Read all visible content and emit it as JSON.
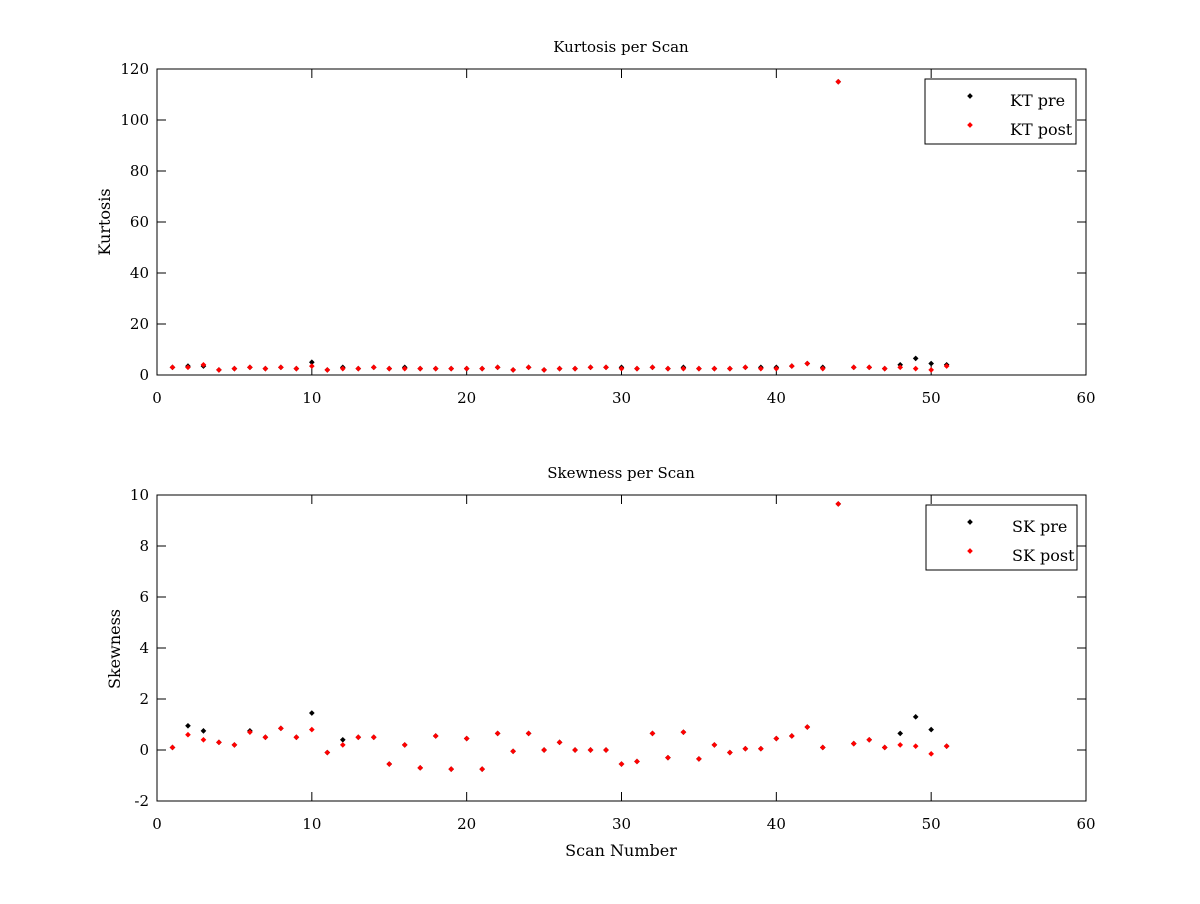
{
  "chart_data": [
    {
      "type": "scatter",
      "title": "Kurtosis per Scan",
      "xlabel": "",
      "ylabel": "Kurtosis",
      "xlim": [
        0,
        60
      ],
      "ylim": [
        0,
        120
      ],
      "xticks": [
        0,
        10,
        20,
        30,
        40,
        50,
        60
      ],
      "yticks": [
        0,
        20,
        40,
        60,
        80,
        100,
        120
      ],
      "grid": false,
      "legend_position": "top-right",
      "series": [
        {
          "name": "KT pre",
          "color": "#000000",
          "x": [
            1,
            2,
            3,
            4,
            5,
            6,
            7,
            8,
            9,
            10,
            11,
            12,
            13,
            14,
            15,
            16,
            17,
            18,
            19,
            20,
            21,
            22,
            23,
            24,
            25,
            26,
            27,
            28,
            29,
            30,
            31,
            32,
            33,
            34,
            35,
            36,
            37,
            38,
            39,
            40,
            41,
            42,
            43,
            44,
            45,
            46,
            47,
            48,
            49,
            50,
            51
          ],
          "y": [
            3,
            3.5,
            3.5,
            2,
            2.5,
            3,
            2.5,
            3,
            2.5,
            5,
            2,
            3,
            2.5,
            3,
            2.5,
            3,
            2.5,
            2.5,
            2.5,
            2.5,
            2.5,
            3,
            2,
            3,
            2,
            2.5,
            2.5,
            3,
            3,
            3,
            2.5,
            3,
            2.5,
            3,
            2.5,
            2.5,
            2.5,
            3,
            3,
            3,
            3.5,
            4.5,
            3,
            115,
            3,
            3,
            2.5,
            4,
            6.5,
            4.5,
            4
          ]
        },
        {
          "name": "KT post",
          "color": "#ff0000",
          "x": [
            1,
            2,
            3,
            4,
            5,
            6,
            7,
            8,
            9,
            10,
            11,
            12,
            13,
            14,
            15,
            16,
            17,
            18,
            19,
            20,
            21,
            22,
            23,
            24,
            25,
            26,
            27,
            28,
            29,
            30,
            31,
            32,
            33,
            34,
            35,
            36,
            37,
            38,
            39,
            40,
            41,
            42,
            43,
            44,
            45,
            46,
            47,
            48,
            49,
            50,
            51
          ],
          "y": [
            3,
            3,
            4,
            2,
            2.5,
            3,
            2.5,
            3,
            2.5,
            3.5,
            2,
            2.5,
            2.5,
            3,
            2.5,
            2.5,
            2.5,
            2.5,
            2.5,
            2.5,
            2.5,
            3,
            2,
            3,
            2,
            2.5,
            2.5,
            3,
            3,
            2.5,
            2.5,
            3,
            2.5,
            2.5,
            2.5,
            2.5,
            2.5,
            3,
            2.5,
            2.5,
            3.5,
            4.5,
            2.5,
            115,
            3,
            3,
            2.5,
            3,
            2.5,
            2,
            3.5
          ]
        }
      ]
    },
    {
      "type": "scatter",
      "title": "Skewness per Scan",
      "xlabel": "Scan Number",
      "ylabel": "Skewness",
      "xlim": [
        0,
        60
      ],
      "ylim": [
        -2,
        10
      ],
      "xticks": [
        0,
        10,
        20,
        30,
        40,
        50,
        60
      ],
      "yticks": [
        -2,
        0,
        2,
        4,
        6,
        8,
        10
      ],
      "grid": false,
      "legend_position": "top-right",
      "series": [
        {
          "name": "SK pre",
          "color": "#000000",
          "x": [
            1,
            2,
            3,
            4,
            5,
            6,
            7,
            8,
            9,
            10,
            11,
            12,
            13,
            14,
            15,
            16,
            17,
            18,
            19,
            20,
            21,
            22,
            23,
            24,
            25,
            26,
            27,
            28,
            29,
            30,
            31,
            32,
            33,
            34,
            35,
            36,
            37,
            38,
            39,
            40,
            41,
            42,
            43,
            44,
            45,
            46,
            47,
            48,
            49,
            50,
            51
          ],
          "y": [
            0.1,
            0.95,
            0.75,
            0.3,
            0.2,
            0.75,
            0.5,
            0.85,
            0.5,
            1.45,
            -0.1,
            0.4,
            0.5,
            0.5,
            -0.55,
            0.2,
            -0.7,
            0.55,
            -0.75,
            0.45,
            -0.75,
            0.65,
            -0.05,
            0.65,
            0,
            0.3,
            0,
            0,
            0,
            -0.55,
            -0.45,
            0.65,
            -0.3,
            0.7,
            -0.35,
            0.2,
            -0.1,
            0.05,
            0.05,
            0.45,
            0.55,
            0.9,
            0.1,
            9.65,
            0.25,
            0.4,
            0.1,
            0.65,
            1.3,
            0.8,
            0.15
          ]
        },
        {
          "name": "SK post",
          "color": "#ff0000",
          "x": [
            1,
            2,
            3,
            4,
            5,
            6,
            7,
            8,
            9,
            10,
            11,
            12,
            13,
            14,
            15,
            16,
            17,
            18,
            19,
            20,
            21,
            22,
            23,
            24,
            25,
            26,
            27,
            28,
            29,
            30,
            31,
            32,
            33,
            34,
            35,
            36,
            37,
            38,
            39,
            40,
            41,
            42,
            43,
            44,
            45,
            46,
            47,
            48,
            49,
            50,
            51
          ],
          "y": [
            0.1,
            0.6,
            0.4,
            0.3,
            0.2,
            0.7,
            0.5,
            0.85,
            0.5,
            0.8,
            -0.1,
            0.2,
            0.5,
            0.5,
            -0.55,
            0.2,
            -0.7,
            0.55,
            -0.75,
            0.45,
            -0.75,
            0.65,
            -0.05,
            0.65,
            0,
            0.3,
            0,
            0,
            0,
            -0.55,
            -0.45,
            0.65,
            -0.3,
            0.7,
            -0.35,
            0.2,
            -0.1,
            0.05,
            0.05,
            0.45,
            0.55,
            0.9,
            0.1,
            9.65,
            0.25,
            0.4,
            0.1,
            0.2,
            0.15,
            -0.15,
            0.15
          ]
        }
      ]
    }
  ]
}
